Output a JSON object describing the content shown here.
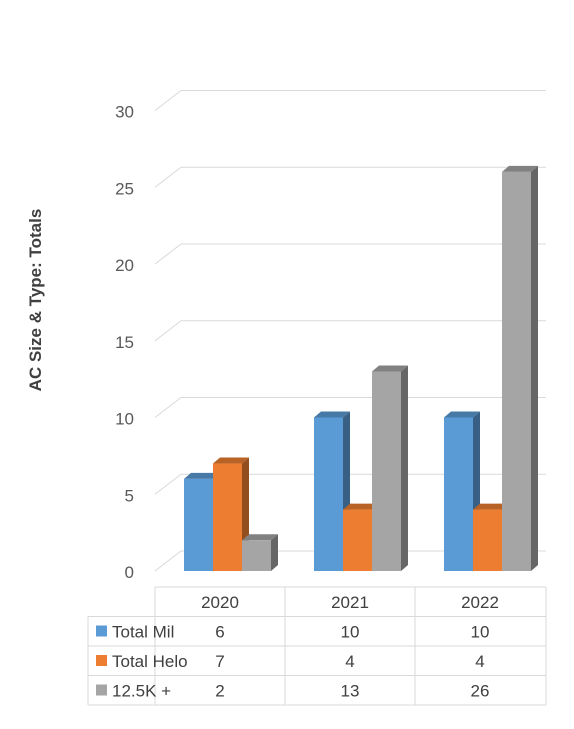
{
  "chart_data": {
    "type": "bar",
    "title": "",
    "xlabel": "",
    "ylabel": "AC Size & Type: Totals",
    "categories": [
      "2020",
      "2021",
      "2022"
    ],
    "series": [
      {
        "name": "Total Mil",
        "values": [
          6,
          10,
          10
        ],
        "color": "#5B9BD5"
      },
      {
        "name": "Total Helo",
        "values": [
          7,
          4,
          4
        ],
        "color": "#ED7D31"
      },
      {
        "name": "12.5K +",
        "values": [
          2,
          13,
          26
        ],
        "color": "#A5A5A5"
      }
    ],
    "ylim": [
      0,
      30
    ],
    "yticks": [
      "0",
      "5",
      "10",
      "15",
      "20",
      "25",
      "30"
    ],
    "grid": true,
    "legend": "data-table",
    "style": "3d-column"
  }
}
